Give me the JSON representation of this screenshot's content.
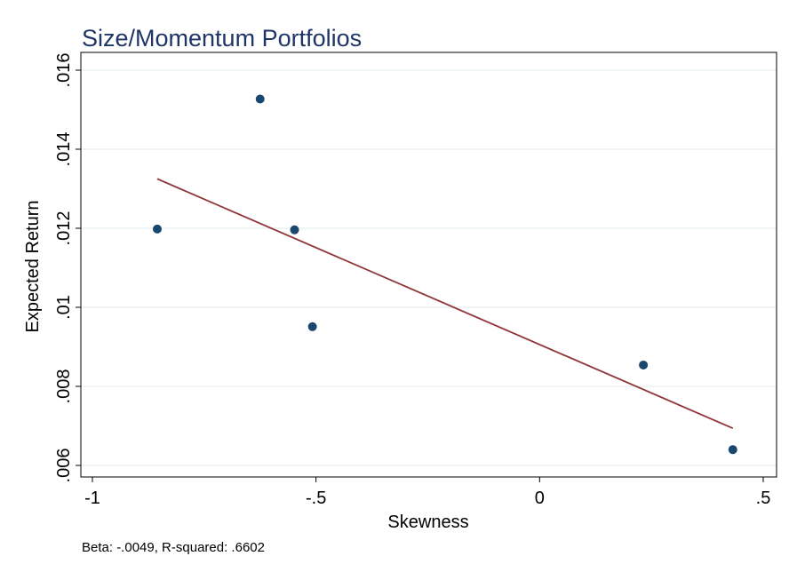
{
  "chart_data": {
    "type": "scatter",
    "title": "Size/Momentum Portfolios",
    "xlabel": "Skewness",
    "ylabel": "Expected Return",
    "xlim": [
      -1,
      0.5
    ],
    "ylim": [
      0.006,
      0.016
    ],
    "x_ticks": [
      -1,
      -0.5,
      0,
      0.5
    ],
    "x_tick_labels": [
      "-1",
      "-.5",
      "0",
      ".5"
    ],
    "y_ticks": [
      0.006,
      0.008,
      0.01,
      0.012,
      0.014,
      0.016
    ],
    "y_tick_labels": [
      ".006",
      ".008",
      ".01",
      ".012",
      ".014",
      ".016"
    ],
    "grid": "horizontal",
    "points": [
      {
        "x": -0.855,
        "y": 0.01198
      },
      {
        "x": -0.625,
        "y": 0.01527
      },
      {
        "x": -0.548,
        "y": 0.01196
      },
      {
        "x": -0.508,
        "y": 0.00951
      },
      {
        "x": 0.232,
        "y": 0.00854
      },
      {
        "x": 0.432,
        "y": 0.0064
      }
    ],
    "fit_line": {
      "x0": -0.855,
      "y0": 0.01325,
      "x1": 0.432,
      "y1": 0.00694
    },
    "annotation": "Beta: -.0049, R-squared: .6602",
    "colors": {
      "title": "#1f3566",
      "points": "#1a476f",
      "fit_line": "#90353b",
      "grid": "#eaf2f3",
      "axis": "#000000"
    }
  }
}
